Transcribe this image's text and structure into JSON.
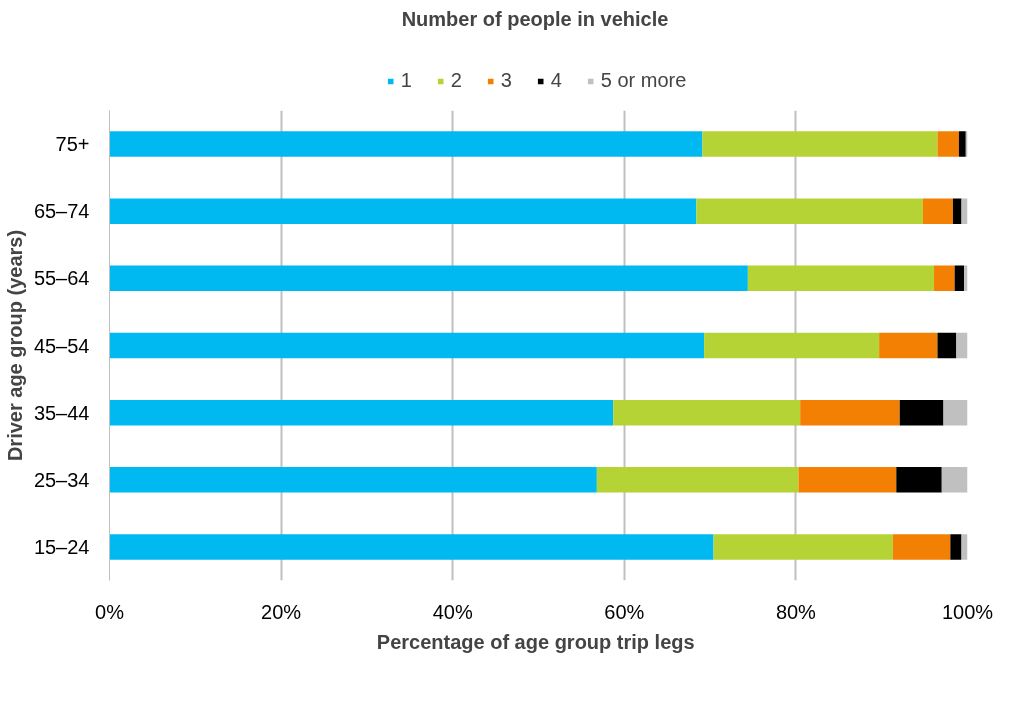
{
  "chart_data": {
    "type": "bar",
    "orientation": "horizontal",
    "stacked": true,
    "title": "Number of people in vehicle",
    "xlabel": "Percentage  of age group trip legs",
    "ylabel": "Driver age group (years)",
    "categories": [
      "75+",
      "65–74",
      "55–64",
      "45–54",
      "35–44",
      "25–34",
      "15–24"
    ],
    "series": [
      {
        "name": "1",
        "color": "#00b9f1",
        "values": [
          69.1,
          68.4,
          74.4,
          69.3,
          58.7,
          56.8,
          70.4
        ]
      },
      {
        "name": "2",
        "color": "#b5d334",
        "values": [
          27.4,
          26.4,
          21.7,
          20.4,
          21.8,
          23.5,
          20.9
        ]
      },
      {
        "name": "3",
        "color": "#f38003",
        "values": [
          2.5,
          3.5,
          2.4,
          6.8,
          11.6,
          11.4,
          6.7
        ]
      },
      {
        "name": "4",
        "color": "#000000",
        "values": [
          0.8,
          1.0,
          1.1,
          2.2,
          5.1,
          5.3,
          1.3
        ]
      },
      {
        "name": "5 or more",
        "color": "#c0c0c0",
        "values": [
          0.2,
          0.7,
          0.4,
          1.3,
          2.8,
          3.0,
          0.7
        ]
      }
    ],
    "xlim": [
      0,
      100
    ],
    "xticks": [
      {
        "value": 0,
        "label": "0%"
      },
      {
        "value": 20,
        "label": "20%"
      },
      {
        "value": 40,
        "label": "40%"
      },
      {
        "value": 60,
        "label": "60%"
      },
      {
        "value": 80,
        "label": "80%"
      },
      {
        "value": 100,
        "label": "100%"
      }
    ],
    "grid": "x",
    "legend": "top"
  }
}
